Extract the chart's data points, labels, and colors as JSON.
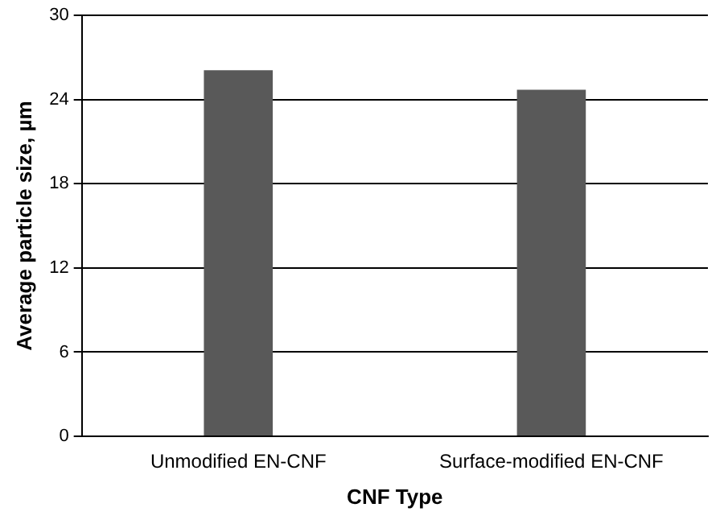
{
  "chart_data": {
    "type": "bar",
    "xlabel": "CNF Type",
    "ylabel": "Average particle size, µm",
    "categories": [
      "Unmodified EN-CNF",
      "Surface-modified EN-CNF"
    ],
    "values": [
      26.1,
      24.7
    ],
    "color": "#595959",
    "ylim": [
      0,
      30
    ],
    "yticks": [
      0,
      6,
      12,
      18,
      24,
      30
    ],
    "grid": "y",
    "legend": false
  }
}
